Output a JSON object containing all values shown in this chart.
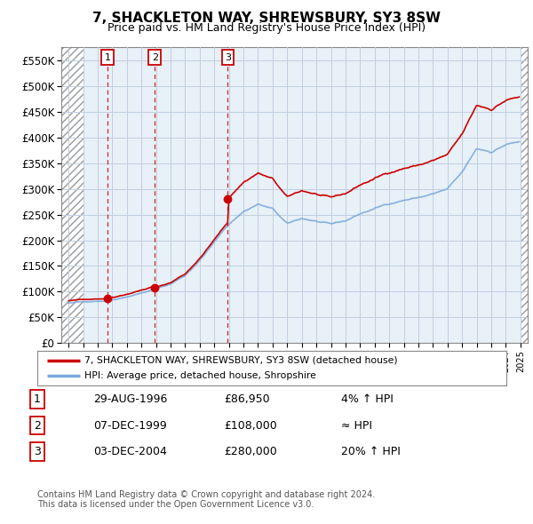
{
  "title": "7, SHACKLETON WAY, SHREWSBURY, SY3 8SW",
  "subtitle": "Price paid vs. HM Land Registry's House Price Index (HPI)",
  "legend_line1": "7, SHACKLETON WAY, SHREWSBURY, SY3 8SW (detached house)",
  "legend_line2": "HPI: Average price, detached house, Shropshire",
  "footer1": "Contains HM Land Registry data © Crown copyright and database right 2024.",
  "footer2": "This data is licensed under the Open Government Licence v3.0.",
  "table": [
    {
      "num": "1",
      "date": "29-AUG-1996",
      "price": "£86,950",
      "hpi": "4% ↑ HPI"
    },
    {
      "num": "2",
      "date": "07-DEC-1999",
      "price": "£108,000",
      "hpi": "≈ HPI"
    },
    {
      "num": "3",
      "date": "03-DEC-2004",
      "price": "£280,000",
      "hpi": "20% ↑ HPI"
    }
  ],
  "sale_dates": [
    1996.66,
    1999.92,
    2004.92
  ],
  "sale_prices": [
    86950,
    108000,
    280000
  ],
  "hpi_line_color": "#7aaadd",
  "price_line_color": "#cc0000",
  "sale_dot_color": "#cc0000",
  "ylim": [
    0,
    575000
  ],
  "yticks": [
    0,
    50000,
    100000,
    150000,
    200000,
    250000,
    300000,
    350000,
    400000,
    450000,
    500000,
    550000
  ],
  "ytick_labels": [
    "£0",
    "£50K",
    "£100K",
    "£150K",
    "£200K",
    "£250K",
    "£300K",
    "£350K",
    "£400K",
    "£450K",
    "£500K",
    "£550K"
  ],
  "xlim_start": 1993.5,
  "xlim_end": 2025.5,
  "grid_color": "#c0d0e0",
  "plot_bg": "#e8f0f8",
  "hatch_right_start": 2025.0
}
